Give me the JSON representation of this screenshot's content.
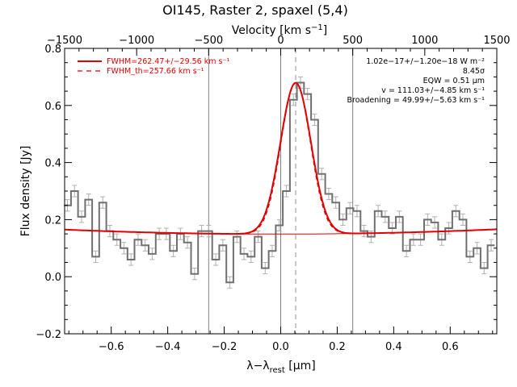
{
  "chart_data": {
    "type": "line",
    "title": "OI145, Raster 2, spaxel (5,4)",
    "xlabel": "λ−λ",
    "xlabel_sub": "rest",
    "xlabel_unit": " [μm]",
    "ylabel": "Flux density [Jy]",
    "top_axis_label": "Velocity [km s",
    "top_axis_label_sup": "−1",
    "top_axis_label_end": "]",
    "xlim": [
      -0.765,
      0.765
    ],
    "ylim": [
      -0.2,
      0.8
    ],
    "xticks": [
      -0.6,
      -0.4,
      -0.2,
      0.0,
      0.2,
      0.4,
      0.6
    ],
    "xtick_labels": [
      "−0.6",
      "−0.4",
      "−0.2",
      "0.0",
      "0.2",
      "0.4",
      "0.6"
    ],
    "yticks": [
      -0.2,
      0.0,
      0.2,
      0.4,
      0.6,
      0.8
    ],
    "ytick_labels": [
      "−0.2",
      "0.0",
      "0.2",
      "0.4",
      "0.6",
      "0.8"
    ],
    "top_ticks": [
      -1500,
      -1000,
      -500,
      0,
      500,
      1000,
      1500
    ],
    "top_tick_labels": [
      "−1500",
      "−1000",
      "−500",
      "0",
      "500",
      "1000",
      "1500"
    ],
    "vlines_solid": [
      -0.255,
      0.0,
      0.255
    ],
    "vline_dashed": 0.053,
    "series": [
      {
        "kind": "histogram",
        "color": "#707070",
        "x": [
          -0.755,
          -0.73,
          -0.705,
          -0.68,
          -0.655,
          -0.63,
          -0.605,
          -0.58,
          -0.555,
          -0.53,
          -0.505,
          -0.48,
          -0.455,
          -0.43,
          -0.405,
          -0.38,
          -0.355,
          -0.33,
          -0.305,
          -0.28,
          -0.255,
          -0.23,
          -0.205,
          -0.18,
          -0.155,
          -0.13,
          -0.105,
          -0.08,
          -0.055,
          -0.03,
          -0.005,
          0.02,
          0.045,
          0.07,
          0.095,
          0.12,
          0.145,
          0.17,
          0.195,
          0.22,
          0.245,
          0.27,
          0.295,
          0.32,
          0.345,
          0.37,
          0.395,
          0.42,
          0.445,
          0.47,
          0.495,
          0.52,
          0.545,
          0.57,
          0.595,
          0.62,
          0.645,
          0.67,
          0.695,
          0.72,
          0.745
        ],
        "y": [
          0.25,
          0.3,
          0.21,
          0.27,
          0.07,
          0.26,
          0.16,
          0.13,
          0.1,
          0.06,
          0.13,
          0.11,
          0.08,
          0.15,
          0.15,
          0.09,
          0.15,
          0.12,
          0.01,
          0.16,
          0.16,
          0.06,
          0.11,
          -0.02,
          0.14,
          0.08,
          0.07,
          0.14,
          0.03,
          0.09,
          0.18,
          0.3,
          0.62,
          0.68,
          0.64,
          0.55,
          0.36,
          0.29,
          0.26,
          0.2,
          0.24,
          0.23,
          0.16,
          0.14,
          0.23,
          0.21,
          0.17,
          0.21,
          0.09,
          0.13,
          0.13,
          0.2,
          0.19,
          0.13,
          0.17,
          0.23,
          0.2,
          0.07,
          0.1,
          0.03,
          0.11
        ],
        "err": 0.02
      },
      {
        "kind": "gaussian_fit",
        "name": "FWHM=262.47+/−29.56 km s⁻¹",
        "color": "#e00000",
        "center": 0.053,
        "sigma": 0.054,
        "amplitude": 0.53,
        "baseline": {
          "a": 0.1493,
          "b": 0.0007,
          "c": 0.0279
        }
      },
      {
        "kind": "gaussian_fit_dashed",
        "name": "FWHM_th=257.66 km s⁻¹",
        "color": "#e00000",
        "center": 0.053,
        "sigma": 0.052,
        "amplitude": 0.53,
        "baseline": {
          "a": 0.1493,
          "b": 0.0007,
          "c": 0.0279
        }
      }
    ],
    "legend": [
      {
        "label": "FWHM=262.47+/−29.56 km s⁻¹",
        "style": "solid",
        "color": "#e00000"
      },
      {
        "label": "FWHM_th=257.66 km s⁻¹",
        "style": "dashed",
        "color": "#e00000"
      }
    ],
    "legend_position": "top-left",
    "annotations": [
      "1.02e−17+/−1.20e−18 W m⁻²",
      "8.45σ",
      "EQW = 0.51 μm",
      "v = 111.03+/−4.85 km s⁻¹",
      "Broadening = 49.99+/−5.63 km s⁻¹"
    ],
    "annotation_position": "top-right",
    "grid": false
  }
}
